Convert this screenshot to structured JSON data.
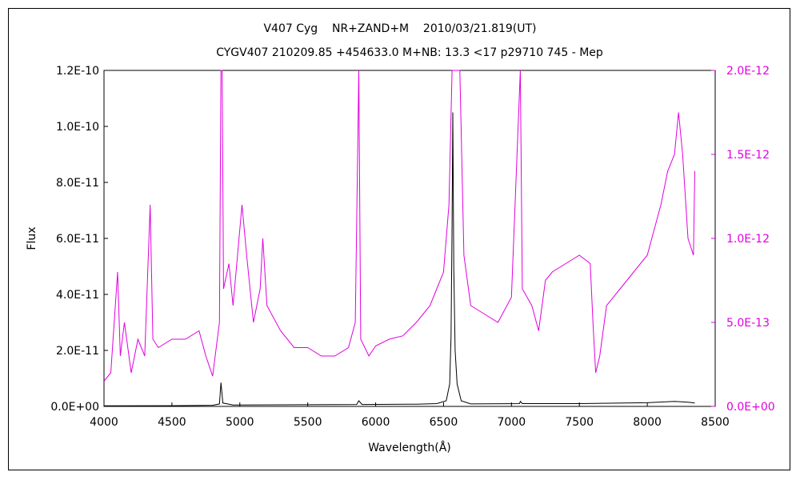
{
  "chart_data": {
    "type": "line",
    "title": "V407 Cyg    NR+ZAND+M    2010/03/21.819(UT)",
    "subtitle": "CYGV407 210209.85 +454633.0 M+NB: 13.3 <17 p29710 745 - Mep",
    "xlabel": "Wavelength(Å)",
    "ylabel": "Flux",
    "xlim": [
      4000,
      8500
    ],
    "ylim_left": [
      0,
      1.2e-10
    ],
    "ylim_right": [
      0,
      2e-12
    ],
    "x_ticks": [
      "4000",
      "4500",
      "5000",
      "5500",
      "6000",
      "6500",
      "7000",
      "7500",
      "8000",
      "8500"
    ],
    "y_ticks_left": [
      "0.0E+00",
      "2.0E-11",
      "4.0E-11",
      "6.0E-11",
      "8.0E-11",
      "1.0E-10",
      "1.2E-10"
    ],
    "y_ticks_right": [
      "0.0E+00",
      "5.0E-13",
      "1.0E-12",
      "1.5E-12",
      "2.0E-12"
    ],
    "grid": false,
    "legend": "none",
    "series": [
      {
        "axis": "left",
        "color": "#000000",
        "points": [
          [
            4000,
            2e-13
          ],
          [
            4500,
            2.5e-13
          ],
          [
            4800,
            4e-13
          ],
          [
            4850,
            9e-13
          ],
          [
            4861,
            8.5e-12
          ],
          [
            4875,
            1.2e-12
          ],
          [
            4950,
            5e-13
          ],
          [
            5500,
            6e-13
          ],
          [
            5860,
            7e-13
          ],
          [
            5876,
            2e-12
          ],
          [
            5900,
            7e-13
          ],
          [
            6300,
            8e-13
          ],
          [
            6450,
            1e-12
          ],
          [
            6520,
            2e-12
          ],
          [
            6545,
            8e-12
          ],
          [
            6555,
            2.5e-11
          ],
          [
            6563,
            6.5e-11
          ],
          [
            6568,
            1.05e-10
          ],
          [
            6575,
            5e-11
          ],
          [
            6585,
            2e-11
          ],
          [
            6600,
            8e-12
          ],
          [
            6630,
            2e-12
          ],
          [
            6700,
            9e-13
          ],
          [
            7060,
            1e-12
          ],
          [
            7065,
            1.8e-12
          ],
          [
            7080,
            1e-12
          ],
          [
            7500,
            1e-12
          ],
          [
            8000,
            1.3e-12
          ],
          [
            8200,
            1.8e-12
          ],
          [
            8300,
            1.5e-12
          ],
          [
            8350,
            1.2e-12
          ]
        ]
      },
      {
        "axis": "right",
        "color": "#e000e0",
        "points": [
          [
            4000,
            1.5e-13
          ],
          [
            4050,
            2e-13
          ],
          [
            4100,
            8e-13
          ],
          [
            4120,
            3e-13
          ],
          [
            4150,
            5e-13
          ],
          [
            4200,
            2e-13
          ],
          [
            4250,
            4e-13
          ],
          [
            4300,
            3e-13
          ],
          [
            4340,
            1.2e-12
          ],
          [
            4360,
            4e-13
          ],
          [
            4400,
            3.5e-13
          ],
          [
            4500,
            4e-13
          ],
          [
            4600,
            4e-13
          ],
          [
            4700,
            4.5e-13
          ],
          [
            4750,
            3e-13
          ],
          [
            4800,
            1.8e-13
          ],
          [
            4850,
            5e-13
          ],
          [
            4861,
            2e-12
          ],
          [
            4870,
            2e-12
          ],
          [
            4880,
            7e-13
          ],
          [
            4920,
            8.5e-13
          ],
          [
            4950,
            6e-13
          ],
          [
            5016,
            1.2e-12
          ],
          [
            5050,
            9e-13
          ],
          [
            5100,
            5e-13
          ],
          [
            5150,
            7e-13
          ],
          [
            5169,
            1e-12
          ],
          [
            5200,
            6e-13
          ],
          [
            5300,
            4.5e-13
          ],
          [
            5400,
            3.5e-13
          ],
          [
            5500,
            3.5e-13
          ],
          [
            5600,
            3e-13
          ],
          [
            5700,
            3e-13
          ],
          [
            5800,
            3.5e-13
          ],
          [
            5850,
            5e-13
          ],
          [
            5876,
            2e-12
          ],
          [
            5890,
            4e-13
          ],
          [
            5950,
            3e-13
          ],
          [
            6000,
            3.6e-13
          ],
          [
            6100,
            4e-13
          ],
          [
            6200,
            4.2e-13
          ],
          [
            6300,
            5e-13
          ],
          [
            6400,
            6e-13
          ],
          [
            6450,
            7e-13
          ],
          [
            6500,
            8e-13
          ],
          [
            6540,
            1.2e-12
          ],
          [
            6563,
            2e-12
          ],
          [
            6620,
            2e-12
          ],
          [
            6650,
            9e-13
          ],
          [
            6700,
            6e-13
          ],
          [
            6800,
            5.5e-13
          ],
          [
            6900,
            5e-13
          ],
          [
            7000,
            6.5e-13
          ],
          [
            7065,
            2e-12
          ],
          [
            7080,
            7e-13
          ],
          [
            7150,
            6e-13
          ],
          [
            7200,
            4.5e-13
          ],
          [
            7250,
            7.5e-13
          ],
          [
            7300,
            8e-13
          ],
          [
            7400,
            8.5e-13
          ],
          [
            7500,
            9e-13
          ],
          [
            7580,
            8.5e-13
          ],
          [
            7600,
            5e-13
          ],
          [
            7620,
            2e-13
          ],
          [
            7650,
            3e-13
          ],
          [
            7700,
            6e-13
          ],
          [
            7800,
            7e-13
          ],
          [
            7900,
            8e-13
          ],
          [
            8000,
            9e-13
          ],
          [
            8100,
            1.2e-12
          ],
          [
            8150,
            1.4e-12
          ],
          [
            8200,
            1.5e-12
          ],
          [
            8230,
            1.75e-12
          ],
          [
            8260,
            1.5e-12
          ],
          [
            8300,
            1e-12
          ],
          [
            8340,
            9e-13
          ],
          [
            8350,
            1.4e-12
          ]
        ]
      }
    ]
  }
}
